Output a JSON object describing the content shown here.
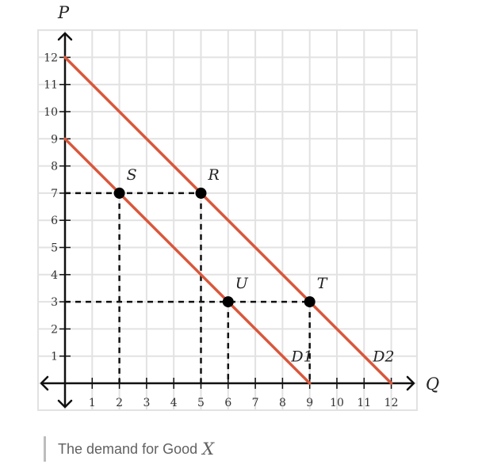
{
  "chart_data": {
    "type": "line",
    "xlabel": "Q",
    "ylabel": "P",
    "xlim": [
      0,
      13
    ],
    "ylim": [
      0,
      13
    ],
    "xticks": [
      "1",
      "2",
      "3",
      "4",
      "5",
      "6",
      "7",
      "8",
      "9",
      "10",
      "11",
      "12"
    ],
    "yticks": [
      "1",
      "2",
      "3",
      "4",
      "5",
      "6",
      "7",
      "8",
      "9",
      "10",
      "11",
      "12"
    ],
    "grid": true,
    "series": [
      {
        "name": "D1",
        "color": "#d9573b",
        "x": [
          0,
          9
        ],
        "y": [
          9,
          0
        ]
      },
      {
        "name": "D2",
        "color": "#d9573b",
        "x": [
          0,
          12
        ],
        "y": [
          12,
          0
        ]
      }
    ],
    "points": [
      {
        "label": "S",
        "x": 2,
        "y": 7
      },
      {
        "label": "R",
        "x": 5,
        "y": 7
      },
      {
        "label": "U",
        "x": 6,
        "y": 3
      },
      {
        "label": "T",
        "x": 9,
        "y": 3
      }
    ],
    "guides": [
      {
        "from": [
          0,
          7
        ],
        "to": [
          5,
          7
        ]
      },
      {
        "from": [
          0,
          3
        ],
        "to": [
          9,
          3
        ]
      },
      {
        "from": [
          2,
          7
        ],
        "to": [
          2,
          0
        ]
      },
      {
        "from": [
          5,
          7
        ],
        "to": [
          5,
          0
        ]
      },
      {
        "from": [
          6,
          3
        ],
        "to": [
          6,
          0
        ]
      },
      {
        "from": [
          9,
          3
        ],
        "to": [
          9,
          0
        ]
      }
    ]
  },
  "caption": {
    "text": "The demand for Good",
    "variable": "X"
  }
}
